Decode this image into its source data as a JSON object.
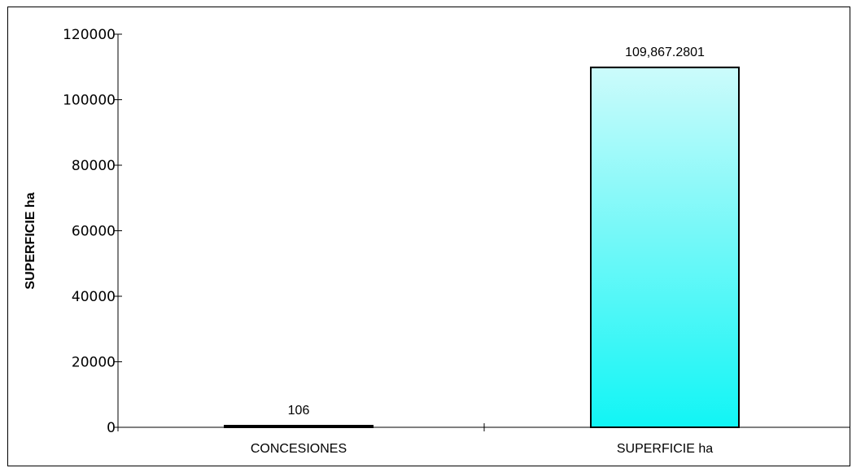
{
  "chart_data": {
    "type": "bar",
    "title": "",
    "xlabel": "",
    "ylabel": "SUPERFICIE ha",
    "categories": [
      "CONCESIONES",
      "SUPERFICIE ha"
    ],
    "values": [
      106,
      109867.2801
    ],
    "value_labels": [
      "106",
      "109,867.2801"
    ],
    "ylim": [
      0,
      120000
    ],
    "yticks": [
      0,
      20000,
      40000,
      60000,
      80000,
      100000,
      120000
    ],
    "ytick_labels": [
      "0",
      "20000",
      "40000",
      "60000",
      "80000",
      "100000",
      "120000"
    ],
    "grid": false,
    "legend": "none",
    "colors": {
      "bar_top": "#ccfbfb",
      "bar_bottom": "#11f5f5",
      "bar_stroke": "#000000"
    }
  }
}
